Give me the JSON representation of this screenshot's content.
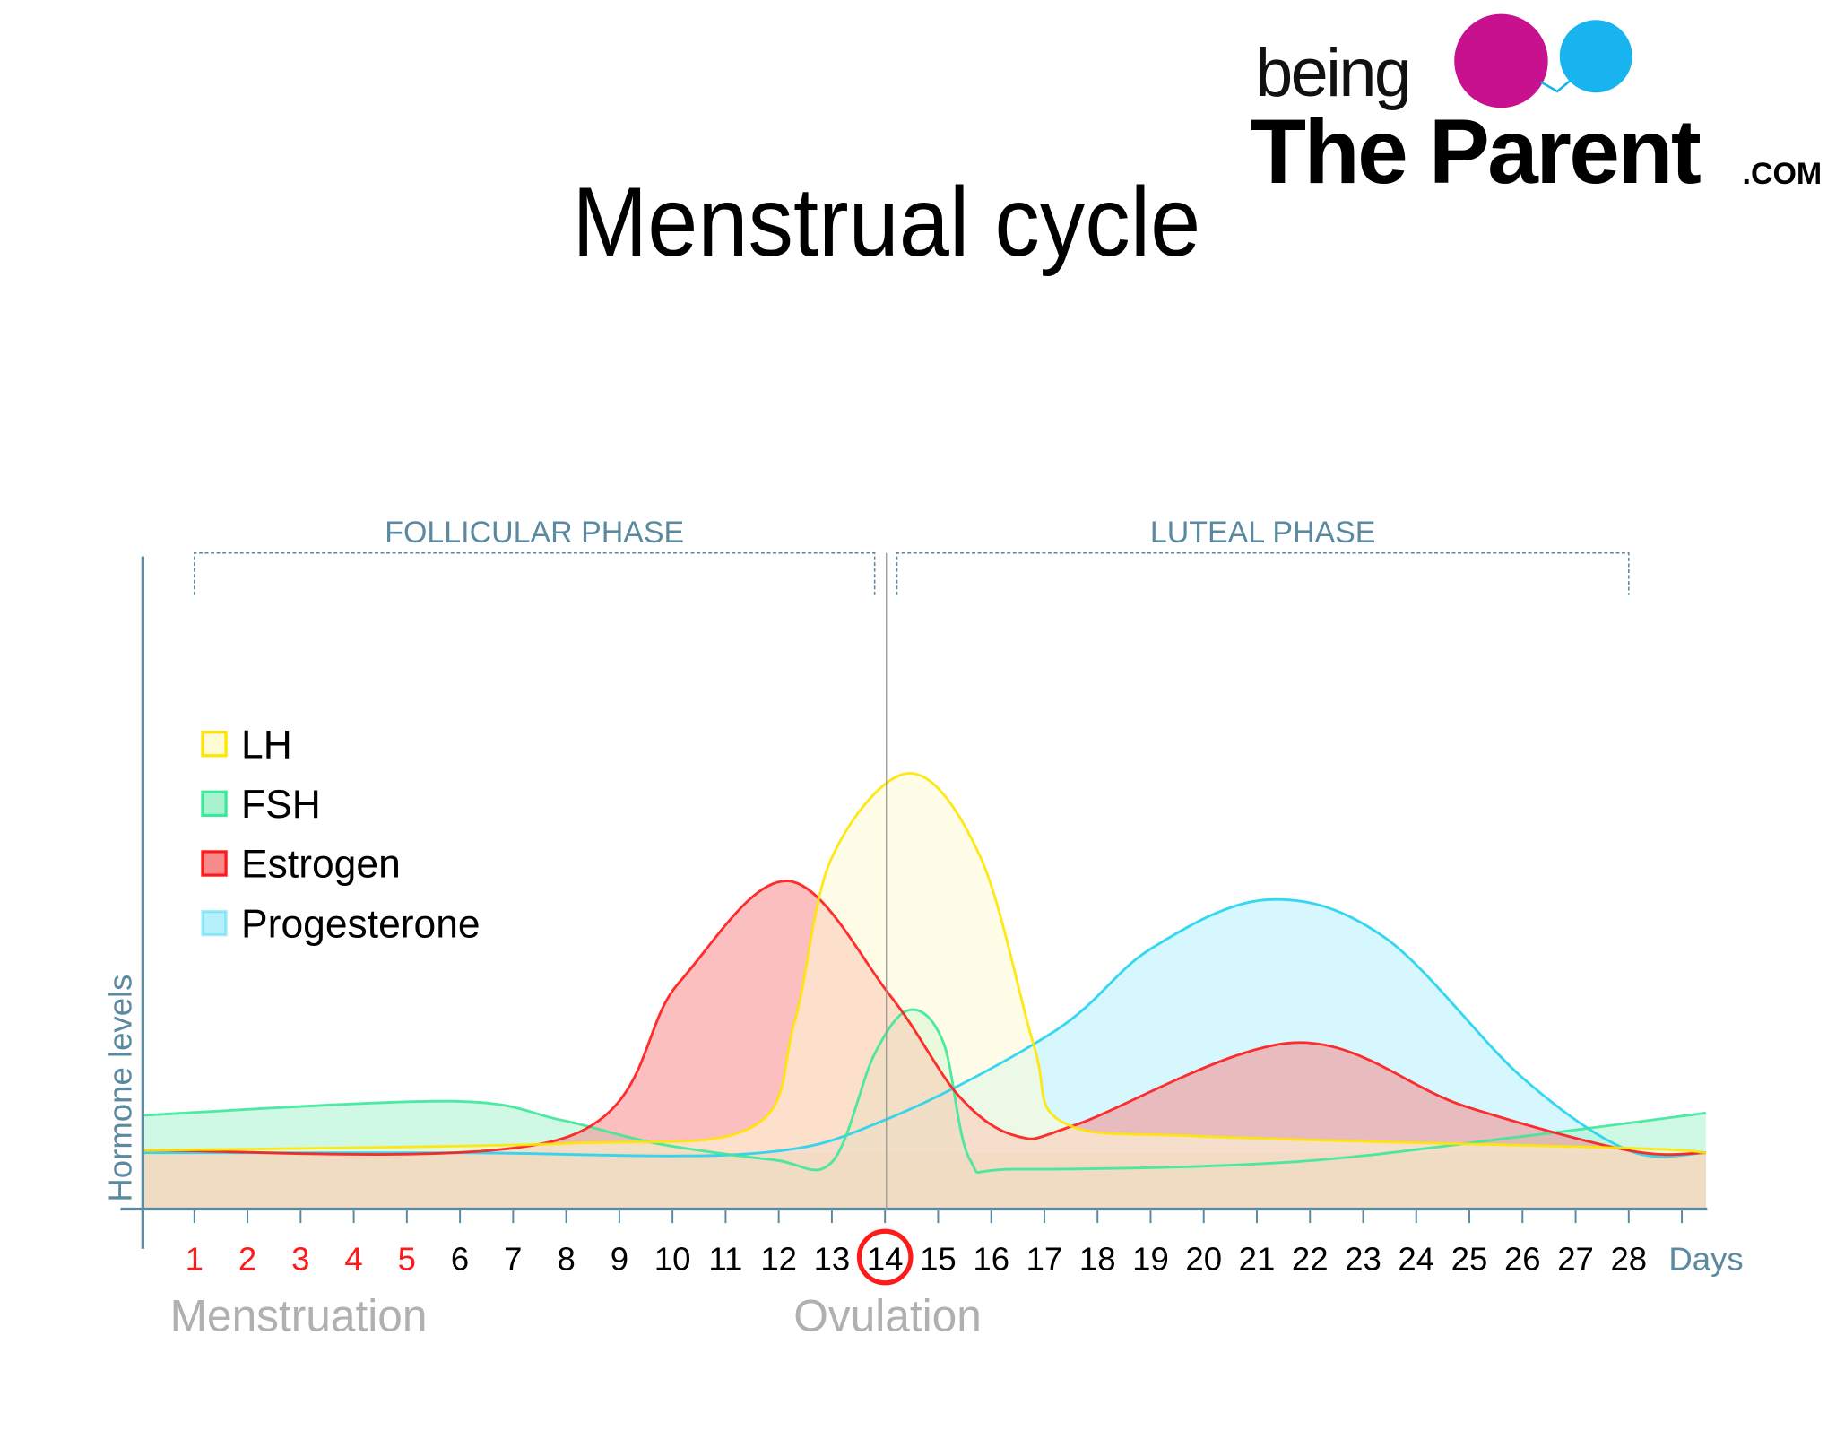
{
  "logo": {
    "being": "being",
    "the_parent": "The Parent",
    "dotcom": ".COM",
    "colors": {
      "magenta": "#c8118f",
      "blue": "#18b4f0"
    }
  },
  "chart_data": {
    "type": "area",
    "title": "Menstrual cycle",
    "xlabel": "Days",
    "ylabel": "Hormone levels",
    "x_ticks": [
      "1",
      "2",
      "3",
      "4",
      "5",
      "6",
      "7",
      "8",
      "9",
      "10",
      "11",
      "12",
      "13",
      "14",
      "15",
      "16",
      "17",
      "18",
      "19",
      "20",
      "21",
      "22",
      "23",
      "24",
      "25",
      "26",
      "27",
      "28"
    ],
    "menstruation_days": [
      1,
      2,
      3,
      4,
      5
    ],
    "ovulation_day": 14,
    "xlim": [
      0.03,
      29.45
    ],
    "ylim": [
      0,
      100
    ],
    "phases": [
      {
        "label": "FOLLICULAR PHASE",
        "start": 1,
        "end": 13.8
      },
      {
        "label": "LUTEAL PHASE",
        "start": 14.2,
        "end": 28
      }
    ],
    "annotations": {
      "menstruation": "Menstruation",
      "ovulation": "Ovulation"
    },
    "legend_position": "left",
    "series": [
      {
        "name": "Progesterone",
        "stroke": "#22d3f0",
        "fill": "#b5f0fc",
        "points": [
          [
            0.03,
            12
          ],
          [
            6,
            12
          ],
          [
            11.45,
            11.8
          ],
          [
            14,
            19
          ],
          [
            17.2,
            38
          ],
          [
            19,
            55.5
          ],
          [
            21.2,
            66
          ],
          [
            23.4,
            58
          ],
          [
            26,
            28
          ],
          [
            28,
            12.5
          ],
          [
            29.45,
            12
          ]
        ]
      },
      {
        "name": "FSH",
        "stroke": "#3ce89a",
        "fill": "#a8f2cf",
        "points": [
          [
            0.03,
            20
          ],
          [
            5.8,
            23
          ],
          [
            7.9,
            19
          ],
          [
            9.7,
            14
          ],
          [
            11.9,
            10.5
          ],
          [
            13,
            10
          ],
          [
            13.8,
            33
          ],
          [
            14.47,
            42.5
          ],
          [
            15.1,
            35.5
          ],
          [
            15.6,
            10.5
          ],
          [
            16.5,
            8.5
          ],
          [
            21.6,
            10
          ],
          [
            26,
            15.5
          ],
          [
            29.45,
            20.5
          ]
        ]
      },
      {
        "name": "Estrogen",
        "stroke": "#ff1a1a",
        "fill": "#f78a8a",
        "points": [
          [
            0.03,
            12.5
          ],
          [
            7.92,
            15
          ],
          [
            10.1,
            48
          ],
          [
            12.17,
            70
          ],
          [
            14.1,
            45.5
          ],
          [
            15.4,
            24
          ],
          [
            16.5,
            15.5
          ],
          [
            17.6,
            18
          ],
          [
            21.7,
            35.5
          ],
          [
            24.9,
            22
          ],
          [
            28,
            12.5
          ],
          [
            29.45,
            12
          ]
        ]
      },
      {
        "name": "LH",
        "stroke": "#ffe500",
        "fill": "#fffbd6",
        "points": [
          [
            0.03,
            12.5
          ],
          [
            8,
            14
          ],
          [
            11.5,
            17.5
          ],
          [
            12.3,
            40
          ],
          [
            13.0,
            75
          ],
          [
            14.47,
            93
          ],
          [
            15.8,
            75
          ],
          [
            16.8,
            35
          ],
          [
            17.35,
            18.5
          ],
          [
            20,
            15.5
          ],
          [
            28,
            13
          ],
          [
            29.45,
            12
          ]
        ]
      }
    ],
    "legend": [
      "LH",
      "FSH",
      "Estrogen",
      "Progesterone"
    ]
  }
}
